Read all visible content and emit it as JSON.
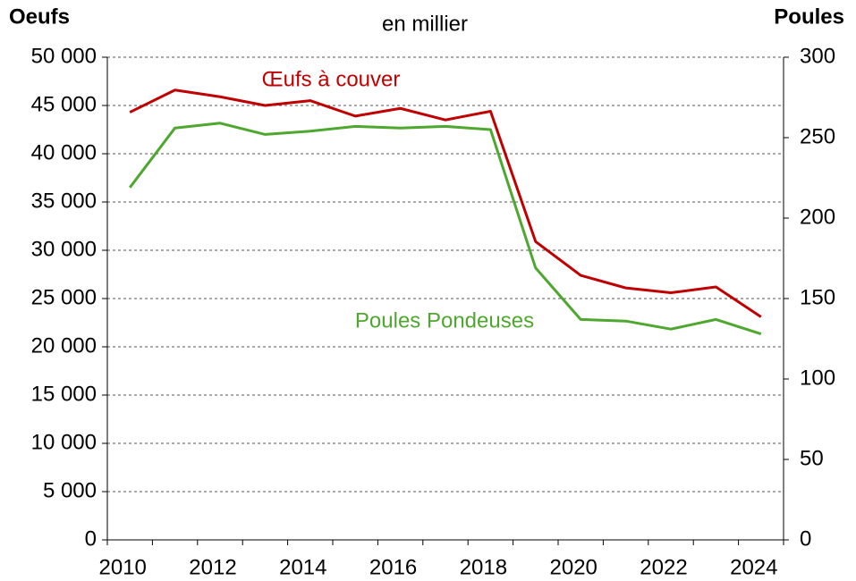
{
  "chart_data": {
    "type": "line",
    "title": "en millier",
    "y_label": "Oeufs",
    "y2_label": "Poules",
    "categories": [
      {
        "value": 2010,
        "label": "2010"
      },
      null,
      {
        "value": 2012,
        "label": "2012"
      },
      null,
      {
        "value": 2014,
        "label": "2014"
      },
      null,
      {
        "value": 2016,
        "label": "2016"
      },
      null,
      {
        "value": 2018,
        "label": "2018"
      },
      null,
      {
        "value": 2020,
        "label": "2020"
      },
      null,
      {
        "value": 2022,
        "label": "2022"
      },
      null,
      {
        "value": 2024,
        "label": "2024"
      }
    ],
    "series": [
      {
        "name": "Œufs à couver",
        "color": "#c00000",
        "values": [
          44300,
          46600,
          45900,
          45000,
          45500,
          43900,
          44700,
          43500,
          44400,
          30900,
          27400,
          26100,
          25600,
          26200,
          23100
        ]
      },
      {
        "name": "Poules Pondeuses",
        "color": "#4ea72e",
        "axis": "y2",
        "values": [
          219,
          256,
          259,
          252,
          254,
          257,
          256,
          257,
          255,
          169,
          137,
          136,
          131,
          137,
          128
        ]
      }
    ],
    "ylim": [
      0,
      50000
    ],
    "yticks": [
      {
        "value": 0,
        "label": "0"
      },
      {
        "value": 5000,
        "label": "5 000"
      },
      {
        "value": 10000,
        "label": "10 000"
      },
      {
        "value": 15000,
        "label": "15 000"
      },
      {
        "value": 20000,
        "label": "20 000"
      },
      {
        "value": 25000,
        "label": "25 000"
      },
      {
        "value": 30000,
        "label": "30 000"
      },
      {
        "value": 35000,
        "label": "35 000"
      },
      {
        "value": 40000,
        "label": "40 000"
      },
      {
        "value": 45000,
        "label": "45 000"
      },
      {
        "value": 50000,
        "label": "50 000"
      }
    ],
    "y2lim": [
      0,
      300
    ],
    "y2ticks": [
      0,
      50,
      100,
      150,
      200,
      250,
      300
    ],
    "grid": true
  }
}
